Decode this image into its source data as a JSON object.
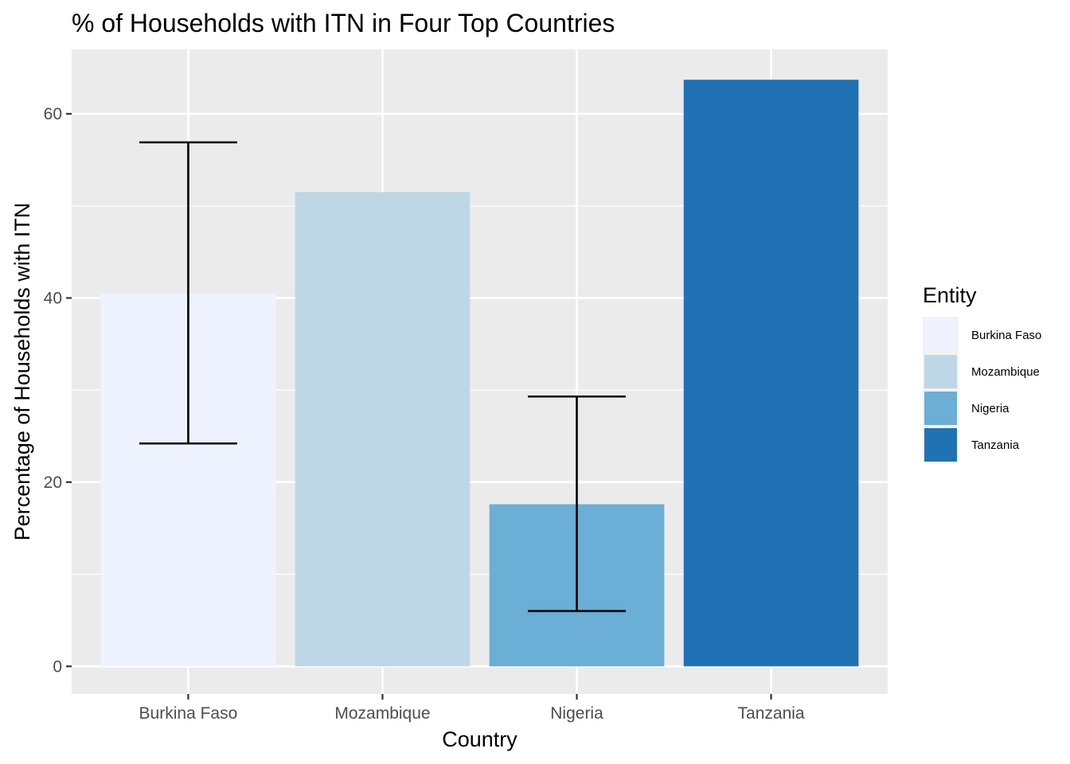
{
  "chart_data": {
    "type": "bar",
    "title": "% of Households with ITN in Four Top Countries",
    "xlabel": "Country",
    "ylabel": "Percentage of Households with ITN",
    "categories": [
      "Burkina Faso",
      "Mozambique",
      "Nigeria",
      "Tanzania"
    ],
    "values": [
      40.5,
      51.5,
      17.6,
      63.7
    ],
    "error_bars": [
      {
        "category": "Burkina Faso",
        "low": 24.2,
        "high": 56.9
      },
      {
        "category": "Nigeria",
        "low": 6.0,
        "high": 29.3
      }
    ],
    "colors": [
      "#eff3ff",
      "#bdd7e7",
      "#6baed6",
      "#2171b5"
    ],
    "ylim": [
      -3,
      67
    ],
    "yticks": [
      0,
      20,
      40,
      60
    ],
    "yticks_labels": [
      "0",
      "20",
      "40",
      "60"
    ],
    "grid": true,
    "panel_background": "#ebebeb",
    "legend": {
      "title": "Entity",
      "position": "right",
      "entries": [
        "Burkina Faso",
        "Mozambique",
        "Nigeria",
        "Tanzania"
      ]
    }
  }
}
